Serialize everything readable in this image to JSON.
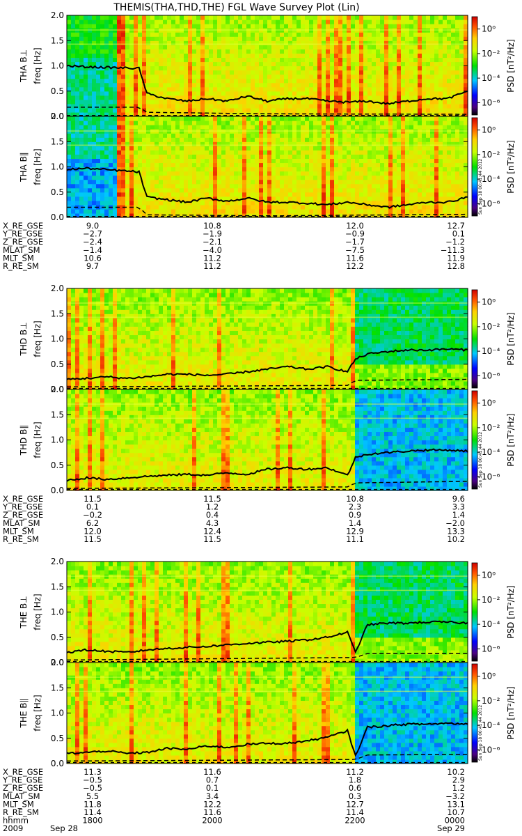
{
  "title": "THEMIS(THA,THD,THE) FGL Wave Survey Plot (Lin)",
  "watermark": "Sun Sep 18 00:41:44 2012",
  "colors": {
    "bg": "#ffffff",
    "spectro_low": "#0000c0",
    "spectro_mid": "#00d000",
    "spectro_high": "#ff0000",
    "line": "#000000"
  },
  "chart_data": {
    "type": "heatmap",
    "subtype": "spectrogram",
    "time_range": [
      "2009-09-28 17:30",
      "2009-09-29 00:00"
    ],
    "ylim": [
      0,
      2.0
    ],
    "yticks": [
      "0.0",
      "0.5",
      "1.0",
      "1.5",
      "2.0"
    ],
    "ylabel": "freq [Hz]",
    "colorbar": {
      "label": "PSD [nT²/Hz]",
      "ticks": [
        "10⁰",
        "10⁻²",
        "10⁻⁴",
        "10⁻⁶"
      ],
      "range_log10": [
        -7,
        1
      ]
    },
    "groups": [
      {
        "probe": "THA",
        "panels": [
          {
            "label": "THA B⊥",
            "baseline_x": [
              0.0,
              0.05,
              0.18,
              0.2,
              0.25,
              0.3,
              0.35,
              0.4,
              0.45,
              0.5,
              0.55,
              0.6,
              0.65,
              0.7,
              0.75,
              0.8,
              0.85,
              0.9,
              0.95,
              1.0
            ],
            "baseline_y": [
              1.0,
              0.98,
              0.95,
              0.45,
              0.35,
              0.3,
              0.35,
              0.3,
              0.4,
              0.3,
              0.35,
              0.35,
              0.3,
              0.28,
              0.3,
              0.25,
              0.3,
              0.35,
              0.35,
              0.5
            ],
            "fce_x": [
              0.0,
              0.18,
              0.2,
              0.5,
              1.0
            ],
            "fce_y": [
              0.18,
              0.18,
              0.08,
              0.05,
              0.04
            ],
            "dash_y": 0.02
          },
          {
            "label": "THA B∥",
            "baseline_x": [
              0.0,
              0.05,
              0.18,
              0.2,
              0.25,
              0.3,
              0.35,
              0.4,
              0.45,
              0.5,
              0.55,
              0.6,
              0.65,
              0.7,
              0.75,
              0.8,
              0.85,
              0.9,
              0.95,
              1.0
            ],
            "baseline_y": [
              0.95,
              0.97,
              0.9,
              0.4,
              0.35,
              0.3,
              0.38,
              0.32,
              0.38,
              0.3,
              0.3,
              0.28,
              0.25,
              0.3,
              0.25,
              0.2,
              0.25,
              0.3,
              0.3,
              0.4
            ],
            "fce_x": [
              0.0,
              0.18,
              0.2,
              0.5,
              1.0
            ],
            "fce_y": [
              0.2,
              0.2,
              0.05,
              0.03,
              0.06
            ],
            "dash_y": 0.02
          }
        ],
        "ephem": [
          {
            "name": "X_RE_GSE",
            "values": [
              "9.0",
              "10.8",
              "12.0",
              "12.7"
            ]
          },
          {
            "name": "Y_RE_GSE",
            "values": [
              "−2.7",
              "−1.9",
              "−0.9",
              "0.1"
            ]
          },
          {
            "name": "Z_RE_GSE",
            "values": [
              "−2.4",
              "−2.1",
              "−1.7",
              "−1.2"
            ]
          },
          {
            "name": "MLAT_SM",
            "values": [
              "−1.4",
              "−4.0",
              "−7.5",
              "−11.3"
            ]
          },
          {
            "name": "MLT_SM",
            "values": [
              "10.6",
              "11.2",
              "11.6",
              "11.9"
            ]
          },
          {
            "name": "R_RE_SM",
            "values": [
              "9.7",
              "11.2",
              "12.2",
              "12.8"
            ]
          }
        ]
      },
      {
        "probe": "THD",
        "panels": [
          {
            "label": "THD B⊥",
            "baseline_x": [
              0.0,
              0.05,
              0.1,
              0.15,
              0.2,
              0.25,
              0.3,
              0.35,
              0.4,
              0.45,
              0.5,
              0.55,
              0.6,
              0.65,
              0.7,
              0.72,
              0.75,
              0.8,
              0.85,
              0.9,
              0.95,
              1.0
            ],
            "baseline_y": [
              0.2,
              0.22,
              0.25,
              0.22,
              0.25,
              0.3,
              0.3,
              0.28,
              0.3,
              0.35,
              0.4,
              0.45,
              0.4,
              0.45,
              0.35,
              0.6,
              0.7,
              0.75,
              0.78,
              0.78,
              0.8,
              0.78
            ],
            "fce_x": [
              0.0,
              0.7,
              0.72,
              1.0
            ],
            "fce_y": [
              0.05,
              0.08,
              0.18,
              0.2
            ],
            "dash_y": 0.02
          },
          {
            "label": "THD B∥",
            "baseline_x": [
              0.0,
              0.05,
              0.1,
              0.15,
              0.2,
              0.25,
              0.3,
              0.35,
              0.4,
              0.45,
              0.5,
              0.55,
              0.6,
              0.65,
              0.7,
              0.72,
              0.75,
              0.8,
              0.85,
              0.9,
              0.95,
              1.0
            ],
            "baseline_y": [
              0.2,
              0.25,
              0.22,
              0.25,
              0.28,
              0.3,
              0.32,
              0.3,
              0.35,
              0.32,
              0.42,
              0.45,
              0.42,
              0.45,
              0.3,
              0.65,
              0.72,
              0.75,
              0.78,
              0.8,
              0.8,
              0.78
            ],
            "fce_x": [
              0.0,
              0.7,
              0.72,
              1.0
            ],
            "fce_y": [
              0.04,
              0.07,
              0.15,
              0.18
            ],
            "dash_y": 0.02
          }
        ],
        "ephem": [
          {
            "name": "X_RE_GSE",
            "values": [
              "11.5",
              "11.5",
              "10.8",
              "9.6"
            ]
          },
          {
            "name": "Y_RE_GSE",
            "values": [
              "0.1",
              "1.2",
              "2.3",
              "3.3"
            ]
          },
          {
            "name": "Z_RE_GSE",
            "values": [
              "−0.2",
              "0.4",
              "0.9",
              "1.4"
            ]
          },
          {
            "name": "MLAT_SM",
            "values": [
              "6.2",
              "4.3",
              "1.4",
              "−2.0"
            ]
          },
          {
            "name": "MLT_SM",
            "values": [
              "12.0",
              "12.4",
              "12.9",
              "13.3"
            ]
          },
          {
            "name": "R_RE_SM",
            "values": [
              "11.5",
              "11.5",
              "11.1",
              "10.2"
            ]
          }
        ]
      },
      {
        "probe": "THE",
        "panels": [
          {
            "label": "THE B⊥",
            "baseline_x": [
              0.0,
              0.05,
              0.1,
              0.15,
              0.2,
              0.25,
              0.3,
              0.35,
              0.4,
              0.45,
              0.5,
              0.55,
              0.6,
              0.65,
              0.7,
              0.72,
              0.75,
              0.8,
              0.85,
              0.9,
              0.95,
              1.0
            ],
            "baseline_y": [
              0.2,
              0.25,
              0.22,
              0.2,
              0.25,
              0.28,
              0.3,
              0.32,
              0.35,
              0.38,
              0.4,
              0.42,
              0.45,
              0.5,
              0.6,
              0.2,
              0.75,
              0.78,
              0.78,
              0.8,
              0.8,
              0.78
            ],
            "fce_x": [
              0.0,
              0.72,
              0.75,
              1.0
            ],
            "fce_y": [
              0.05,
              0.1,
              0.18,
              0.18
            ],
            "dash_y": 0.02
          },
          {
            "label": "THE B∥",
            "baseline_x": [
              0.0,
              0.05,
              0.1,
              0.15,
              0.2,
              0.25,
              0.3,
              0.35,
              0.4,
              0.45,
              0.5,
              0.55,
              0.6,
              0.65,
              0.7,
              0.72,
              0.75,
              0.8,
              0.85,
              0.9,
              0.95,
              1.0
            ],
            "baseline_y": [
              0.2,
              0.22,
              0.25,
              0.2,
              0.22,
              0.3,
              0.28,
              0.35,
              0.32,
              0.38,
              0.4,
              0.4,
              0.45,
              0.52,
              0.65,
              0.15,
              0.72,
              0.75,
              0.78,
              0.78,
              0.8,
              0.78
            ],
            "fce_x": [
              0.0,
              0.72,
              0.75,
              1.0
            ],
            "fce_y": [
              0.05,
              0.08,
              0.17,
              0.18
            ],
            "dash_y": 0.02
          }
        ],
        "ephem": [
          {
            "name": "X_RE_GSE",
            "values": [
              "11.3",
              "11.6",
              "11.2",
              "10.2"
            ]
          },
          {
            "name": "Y_RE_GSE",
            "values": [
              "−0.5",
              "0.7",
              "1.8",
              "2.9"
            ]
          },
          {
            "name": "Z_RE_GSE",
            "values": [
              "−0.5",
              "0.1",
              "0.6",
              "1.2"
            ]
          },
          {
            "name": "MLAT_SM",
            "values": [
              "5.5",
              "3.4",
              "0.3",
              "−3.2"
            ]
          },
          {
            "name": "MLT_SM",
            "values": [
              "11.8",
              "12.2",
              "12.7",
              "13.1"
            ]
          },
          {
            "name": "R_RE_SM",
            "values": [
              "11.4",
              "11.6",
              "11.4",
              "10.7"
            ]
          }
        ],
        "time_axis": {
          "name": "hhmm",
          "ticks": [
            "1800",
            "2000",
            "2200",
            "0000"
          ],
          "date_left": [
            "2009",
            "Sep 28"
          ],
          "date_right": "Sep 29"
        }
      }
    ]
  }
}
